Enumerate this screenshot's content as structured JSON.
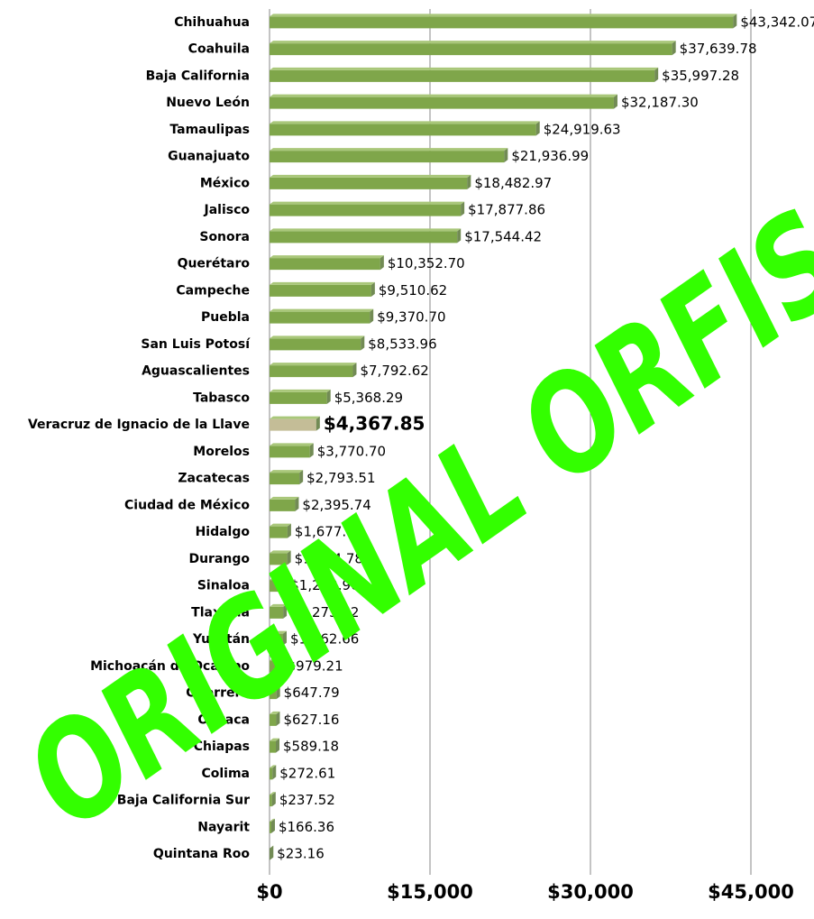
{
  "chart_data": {
    "type": "hbar",
    "categories": [
      "Chihuahua",
      "Coahuila",
      "Baja California",
      "Nuevo León",
      "Tamaulipas",
      "Guanajuato",
      "México",
      "Jalisco",
      "Sonora",
      "Querétaro",
      "Campeche",
      "Puebla",
      "San Luis Potosí",
      "Aguascalientes",
      "Tabasco",
      "Veracruz de Ignacio de la Llave",
      "Morelos",
      "Zacatecas",
      "Ciudad de México",
      "Hidalgo",
      "Durango",
      "Sinaloa",
      "Tlaxcala",
      "Yucatán",
      "Michoacán de Ocampo",
      "Guerrero",
      "Oaxaca",
      "Chiapas",
      "Colima",
      "Baja California Sur",
      "Nayarit",
      "Quintana Roo"
    ],
    "values": [
      43342.07,
      37639.78,
      35997.28,
      32187.3,
      24919.63,
      21936.99,
      18482.97,
      17877.86,
      17544.42,
      10352.7,
      9510.62,
      9370.7,
      8533.96,
      7792.62,
      5368.29,
      4367.85,
      3770.7,
      2793.51,
      2395.74,
      1677.73,
      1654.78,
      1283.96,
      1275.32,
      1262.66,
      979.21,
      647.79,
      627.16,
      589.18,
      272.61,
      237.52,
      166.36,
      23.16
    ],
    "value_labels": [
      "$43,342.07",
      "$37,639.78",
      "$35,997.28",
      "$32,187.30",
      "$24,919.63",
      "$21,936.99",
      "$18,482.97",
      "$17,877.86",
      "$17,544.42",
      "$10,352.70",
      "$9,510.62",
      "$9,370.70",
      "$8,533.96",
      "$7,792.62",
      "$5,368.29",
      "$4,367.85",
      "$3,770.70",
      "$2,793.51",
      "$2,395.74",
      "$1,677.73",
      "$1,654.78",
      "$1,283.96",
      "$1,275.32",
      "$1,262.66",
      "$979.21",
      "$647.79",
      "$627.16",
      "$589.18",
      "$272.61",
      "$237.52",
      "$166.36",
      "$23.16"
    ],
    "color": "#7fa64a",
    "colors": [
      "#7fa64a",
      "#7fa64a",
      "#7fa64a",
      "#7fa64a",
      "#7fa64a",
      "#7fa64a",
      "#7fa64a",
      "#7fa64a",
      "#7fa64a",
      "#7fa64a",
      "#7fa64a",
      "#7fa64a",
      "#7fa64a",
      "#7fa64a",
      "#7fa64a",
      "#c4bd97",
      "#7fa64a",
      "#7fa64a",
      "#7fa64a",
      "#7fa64a",
      "#7fa64a",
      "#7fa64a",
      "#7fa64a",
      "#7fa64a",
      "#7fa64a",
      "#7fa64a",
      "#7fa64a",
      "#7fa64a",
      "#7fa64a",
      "#7fa64a",
      "#7fa64a",
      "#7fa64a"
    ],
    "xlim": [
      0,
      45000
    ],
    "xticks": [
      {
        "value": 0,
        "label": "$0"
      },
      {
        "value": 15000,
        "label": "$15,000"
      },
      {
        "value": 30000,
        "label": "$30,000"
      },
      {
        "value": 45000,
        "label": "$45,000"
      }
    ],
    "grid": true,
    "annotation": "ORIGINAL ORFIS"
  }
}
